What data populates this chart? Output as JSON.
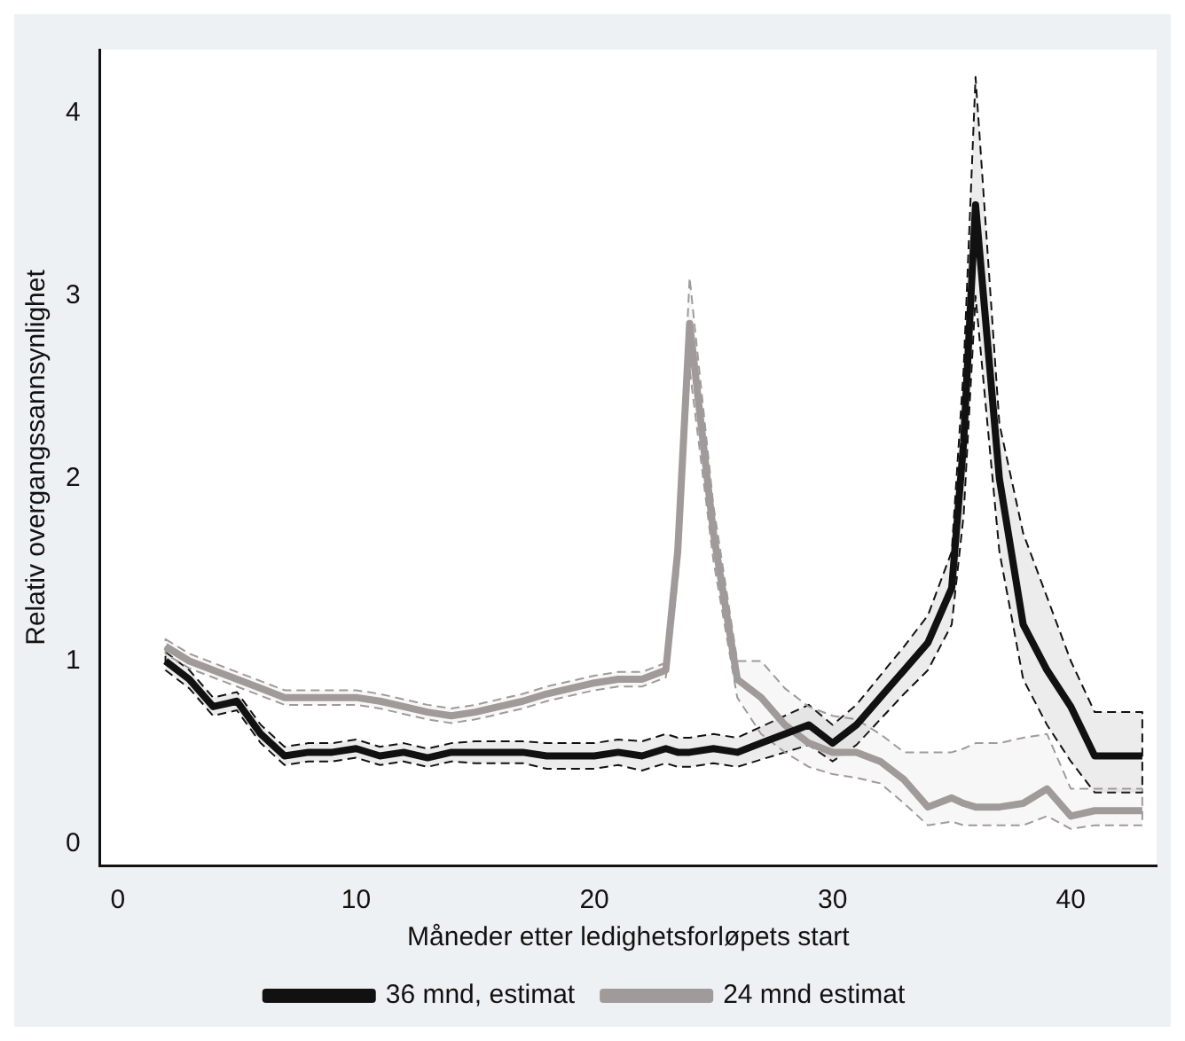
{
  "chart_data": {
    "type": "line",
    "xlabel": "Måneder etter ledighetsforløpets start",
    "ylabel": "Relativ overgangssannsynlighet",
    "x": [
      2,
      3,
      4,
      5,
      6,
      7,
      8,
      9,
      10,
      11,
      12,
      13,
      14,
      15,
      16,
      17,
      18,
      19,
      20,
      21,
      22,
      23,
      23.5,
      24,
      25,
      26,
      27,
      28,
      29,
      30,
      31,
      32,
      33,
      34,
      35,
      35.5,
      36,
      37,
      38,
      39,
      40,
      41,
      43
    ],
    "series": [
      {
        "name": "36 mnd, estimat",
        "color": "#111111",
        "values": [
          1.0,
          0.9,
          0.75,
          0.78,
          0.6,
          0.48,
          0.5,
          0.5,
          0.52,
          0.48,
          0.5,
          0.47,
          0.5,
          0.5,
          0.5,
          0.5,
          0.48,
          0.48,
          0.48,
          0.5,
          0.48,
          0.52,
          0.5,
          0.5,
          0.52,
          0.5,
          0.55,
          0.6,
          0.65,
          0.55,
          0.65,
          0.8,
          0.95,
          1.1,
          1.4,
          2.2,
          3.5,
          2.0,
          1.2,
          0.95,
          0.75,
          0.48,
          0.48
        ],
        "upper": [
          1.05,
          0.95,
          0.8,
          0.83,
          0.65,
          0.53,
          0.55,
          0.55,
          0.57,
          0.53,
          0.55,
          0.52,
          0.55,
          0.56,
          0.56,
          0.56,
          0.55,
          0.55,
          0.55,
          0.57,
          0.56,
          0.6,
          0.58,
          0.58,
          0.6,
          0.58,
          0.64,
          0.7,
          0.76,
          0.65,
          0.76,
          0.92,
          1.08,
          1.25,
          1.6,
          2.6,
          4.2,
          2.3,
          1.7,
          1.35,
          1.0,
          0.72,
          0.72
        ],
        "lower": [
          0.95,
          0.85,
          0.7,
          0.73,
          0.55,
          0.43,
          0.45,
          0.45,
          0.47,
          0.43,
          0.45,
          0.42,
          0.45,
          0.44,
          0.44,
          0.44,
          0.41,
          0.41,
          0.41,
          0.43,
          0.4,
          0.44,
          0.42,
          0.42,
          0.44,
          0.42,
          0.46,
          0.5,
          0.54,
          0.45,
          0.54,
          0.68,
          0.82,
          0.95,
          1.2,
          1.8,
          3.0,
          1.6,
          0.9,
          0.65,
          0.45,
          0.28,
          0.28
        ]
      },
      {
        "name": "24 mnd estimat",
        "color": "#a09a9a",
        "values": [
          1.08,
          1.0,
          0.95,
          0.9,
          0.85,
          0.8,
          0.8,
          0.8,
          0.8,
          0.78,
          0.75,
          0.72,
          0.7,
          0.72,
          0.75,
          0.78,
          0.82,
          0.85,
          0.88,
          0.9,
          0.9,
          0.95,
          1.6,
          2.85,
          1.7,
          0.9,
          0.8,
          0.65,
          0.55,
          0.5,
          0.5,
          0.45,
          0.35,
          0.2,
          0.25,
          0.22,
          0.2,
          0.2,
          0.22,
          0.3,
          0.15,
          0.18,
          0.18
        ],
        "upper": [
          1.12,
          1.04,
          0.99,
          0.94,
          0.89,
          0.84,
          0.84,
          0.84,
          0.84,
          0.82,
          0.79,
          0.76,
          0.74,
          0.76,
          0.79,
          0.82,
          0.86,
          0.89,
          0.92,
          0.94,
          0.94,
          0.99,
          1.75,
          3.1,
          1.85,
          1.0,
          1.0,
          0.85,
          0.75,
          0.7,
          0.68,
          0.6,
          0.5,
          0.5,
          0.5,
          0.52,
          0.55,
          0.55,
          0.58,
          0.6,
          0.3,
          0.3,
          0.3
        ],
        "lower": [
          1.04,
          0.96,
          0.91,
          0.86,
          0.81,
          0.76,
          0.76,
          0.76,
          0.76,
          0.74,
          0.71,
          0.68,
          0.66,
          0.68,
          0.71,
          0.74,
          0.78,
          0.81,
          0.84,
          0.86,
          0.86,
          0.91,
          1.45,
          2.6,
          1.55,
          0.8,
          0.6,
          0.5,
          0.42,
          0.38,
          0.36,
          0.33,
          0.22,
          0.1,
          0.12,
          0.1,
          0.1,
          0.1,
          0.1,
          0.15,
          0.08,
          0.1,
          0.1
        ]
      }
    ],
    "xlim": [
      -0.75,
      43.6
    ],
    "ylim": [
      -0.12,
      4.35
    ],
    "xticks": [
      0,
      10,
      20,
      30,
      40
    ],
    "yticks": [
      0,
      1,
      2,
      3,
      4
    ],
    "legend": "bottom"
  }
}
